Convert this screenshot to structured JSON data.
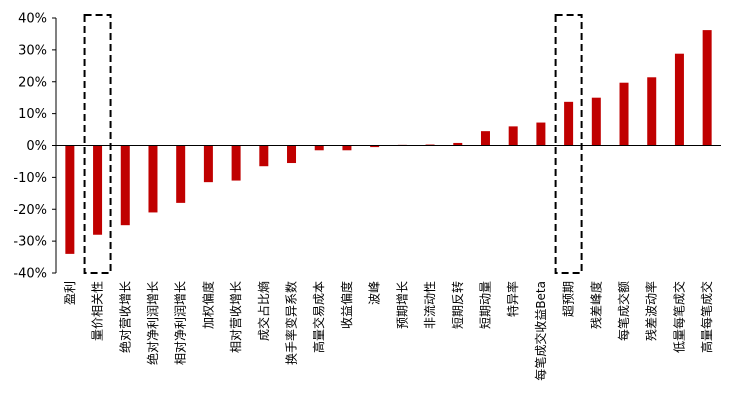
{
  "chart_data": {
    "type": "bar",
    "title": "",
    "xlabel": "",
    "ylabel": "",
    "ylim": [
      -0.4,
      0.4
    ],
    "yticks": [
      0.4,
      0.3,
      0.2,
      0.1,
      0.0,
      -0.1,
      -0.2,
      -0.3,
      -0.4
    ],
    "ytick_labels": [
      "40%",
      "30%",
      "20%",
      "10%",
      "0%",
      "-10%",
      "-20%",
      "-30%",
      "-40%"
    ],
    "bar_color": "#c00000",
    "categories": [
      "盈利",
      "量价相关性",
      "绝对营收增长",
      "绝对净利润增长",
      "相对净利润增长",
      "加权偏度",
      "相对营收增长",
      "成交占比熵",
      "换手率变异系数",
      "高量交易成本",
      "收益偏度",
      "波峰",
      "预期增长",
      "非流动性",
      "短期反转",
      "短期动量",
      "特异率",
      "每笔成交收益Beta",
      "超预期",
      "残差峰度",
      "每笔成交额",
      "残差波动率",
      "低量每笔成交",
      "高量每笔成交"
    ],
    "values": [
      -0.34,
      -0.28,
      -0.25,
      -0.21,
      -0.18,
      -0.115,
      -0.11,
      -0.065,
      -0.055,
      -0.015,
      -0.015,
      -0.005,
      0.002,
      0.003,
      0.008,
      0.045,
      0.06,
      0.072,
      0.137,
      0.15,
      0.197,
      0.214,
      0.288,
      0.362
    ],
    "highlighted_categories": [
      "量价相关性",
      "超预期"
    ],
    "grid": false,
    "legend": "none"
  }
}
